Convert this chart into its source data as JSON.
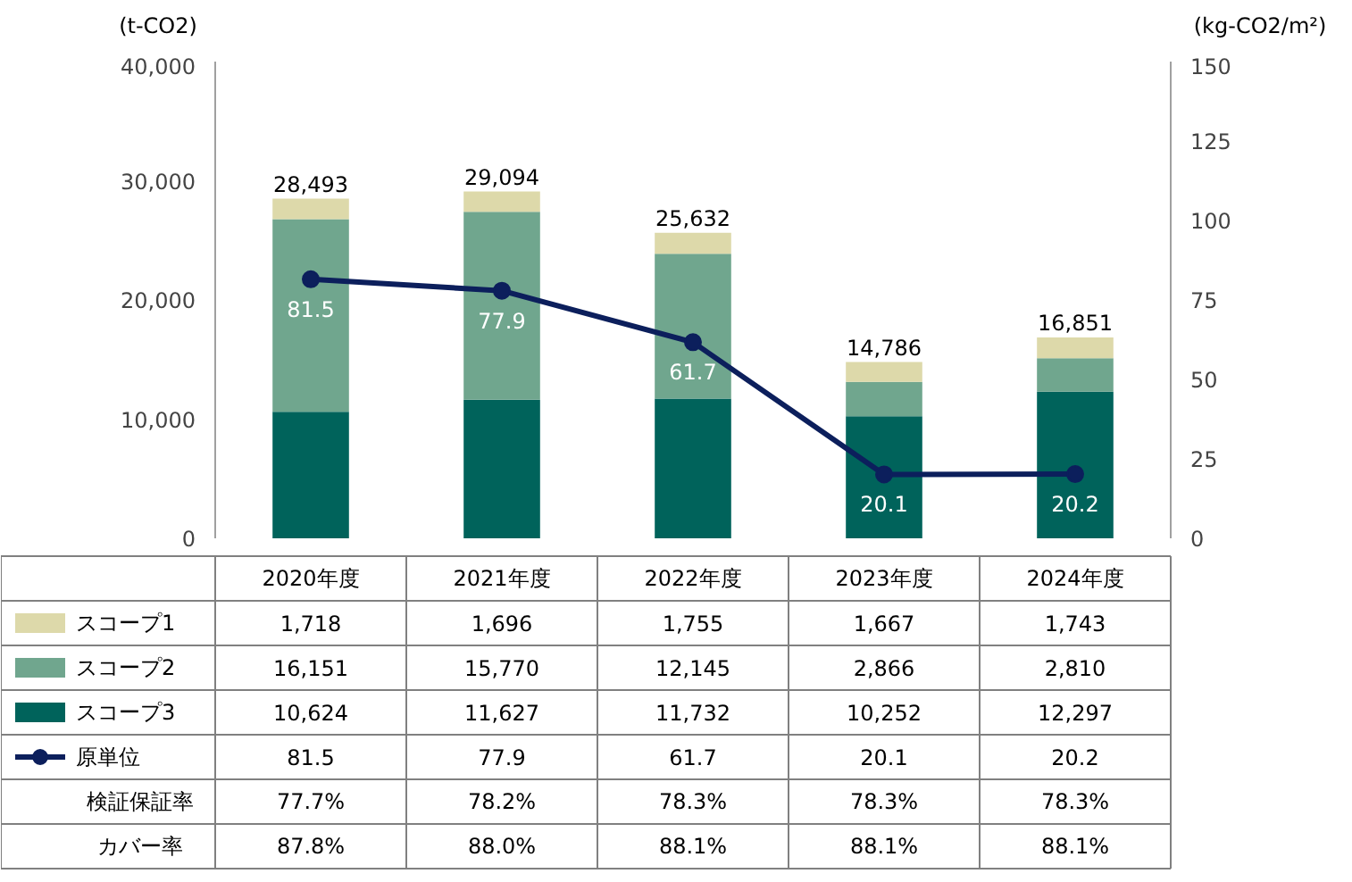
{
  "chart_data": {
    "type": "bar",
    "stacked": true,
    "ylabel": "(t-CO2)",
    "y2label": "(kg-CO2/m²)",
    "categories": [
      "2020年度",
      "2021年度",
      "2022年度",
      "2023年度",
      "2024年度"
    ],
    "ylim": [
      0,
      40000
    ],
    "yticks": [
      0,
      {
        "value": 10000,
        "label": "10,000"
      },
      {
        "value": 20000,
        "label": "20,000"
      },
      {
        "value": 30000,
        "label": "30,000"
      },
      {
        "value": 40000,
        "label": "40,000"
      }
    ],
    "y2lim": [
      0,
      150
    ],
    "y2ticks": [
      0,
      25,
      50,
      75,
      100,
      125,
      150
    ],
    "series": [
      {
        "name": "スコープ3",
        "color": "#00635b",
        "values": [
          10624,
          11627,
          11732,
          10252,
          12297
        ],
        "value_labels": [
          "10,624",
          "11,627",
          "11,732",
          "10,252",
          "12,297"
        ]
      },
      {
        "name": "スコープ2",
        "color": "#70a68e",
        "values": [
          16151,
          15770,
          12145,
          2866,
          2810
        ],
        "value_labels": [
          "16,151",
          "15,770",
          "12,145",
          "2,866",
          "2,810"
        ]
      },
      {
        "name": "スコープ1",
        "color": "#ddd9aa",
        "values": [
          1718,
          1696,
          1755,
          1667,
          1743
        ],
        "value_labels": [
          "1,718",
          "1,696",
          "1,755",
          "1,667",
          "1,743"
        ]
      },
      {
        "name": "原単位",
        "type": "line",
        "axis": "y2",
        "marker": "circle",
        "color": "#0c1f5c",
        "values": [
          81.5,
          77.9,
          61.7,
          20.1,
          20.2
        ],
        "value_labels": [
          "81.5",
          "77.9",
          "61.7",
          "20.1",
          "20.2"
        ]
      }
    ],
    "legend": "bottom",
    "totals": [
      "28,493",
      "29,094",
      "25,632",
      "14,786",
      "16,851"
    ],
    "annotations": [
      "検証保証率",
      "77.7%",
      "78.2%",
      "78.3%",
      "78.3%",
      "78.3%",
      "カバー率",
      "87.8%",
      "88.0%",
      "88.1%",
      "88.1%",
      "88.1%"
    ]
  }
}
